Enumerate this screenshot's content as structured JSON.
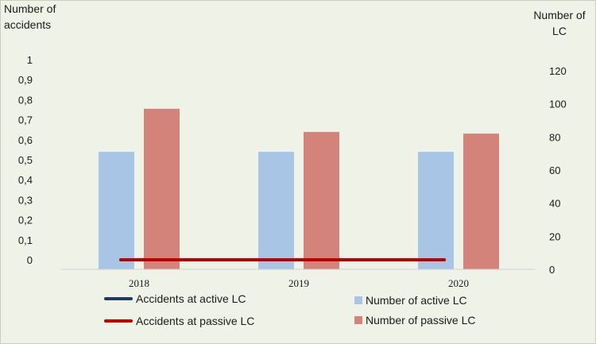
{
  "chart_data": {
    "type": "bar",
    "categories": [
      "2018",
      "2019",
      "2020"
    ],
    "y_left": {
      "label": "Number of accidents",
      "ticks": [
        "0",
        "0,1",
        "0,2",
        "0,3",
        "0,4",
        "0,5",
        "0,6",
        "0,7",
        "0,8",
        "0,9",
        "1"
      ],
      "range": [
        0,
        1
      ]
    },
    "y_right": {
      "label": "Number of LC",
      "ticks": [
        "0",
        "20",
        "40",
        "60",
        "80",
        "100",
        "120"
      ],
      "range": [
        0,
        120
      ]
    },
    "series": [
      {
        "name": "Number of active LC",
        "type": "bar",
        "axis": "right",
        "color": "#a8c5e5",
        "values": [
          71,
          71,
          71
        ]
      },
      {
        "name": "Number of passive LC",
        "type": "bar",
        "axis": "right",
        "color": "#d4837a",
        "values": [
          97,
          83,
          82
        ]
      },
      {
        "name": "Accidents at active LC",
        "type": "line",
        "axis": "left",
        "color": "#1f3b5c",
        "values": [
          0,
          0,
          0
        ]
      },
      {
        "name": "Accidents at passive LC",
        "type": "line",
        "axis": "left",
        "color": "#c00000",
        "values": [
          0,
          0,
          0
        ]
      }
    ],
    "legend": "bottom",
    "grid": false
  }
}
